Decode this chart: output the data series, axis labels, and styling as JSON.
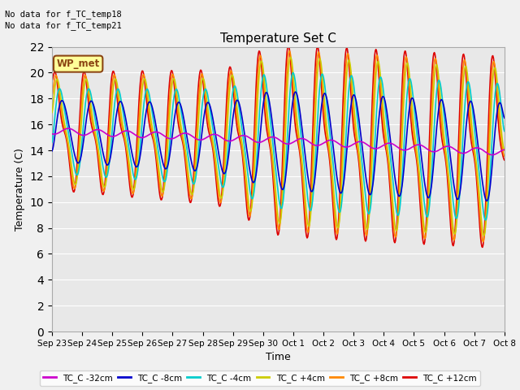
{
  "title": "Temperature Set C",
  "xlabel": "Time",
  "ylabel": "Temperature (C)",
  "ylim": [
    0,
    22
  ],
  "yticks": [
    0,
    2,
    4,
    6,
    8,
    10,
    12,
    14,
    16,
    18,
    20,
    22
  ],
  "no_data_text": [
    "No data for f_TC_temp18",
    "No data for f_TC_temp21"
  ],
  "wp_met_label": "WP_met",
  "x_tick_labels": [
    "Sep 23",
    "Sep 24",
    "Sep 25",
    "Sep 26",
    "Sep 27",
    "Sep 28",
    "Sep 29",
    "Sep 30",
    "Oct 1",
    "Oct 2",
    "Oct 3",
    "Oct 4",
    "Oct 5",
    "Oct 6",
    "Oct 7",
    "Oct 8"
  ],
  "series": [
    {
      "label": "TC_C -32cm",
      "color": "#cc00cc"
    },
    {
      "label": "TC_C -8cm",
      "color": "#0000cc"
    },
    {
      "label": "TC_C -4cm",
      "color": "#00cccc"
    },
    {
      "label": "TC_C +4cm",
      "color": "#cccc00"
    },
    {
      "label": "TC_C +8cm",
      "color": "#ff8800"
    },
    {
      "label": "TC_C +12cm",
      "color": "#dd0000"
    }
  ],
  "fig_facecolor": "#f0f0f0",
  "ax_facecolor": "#e8e8e8",
  "grid_color": "white",
  "spine_color": "#aaaaaa"
}
